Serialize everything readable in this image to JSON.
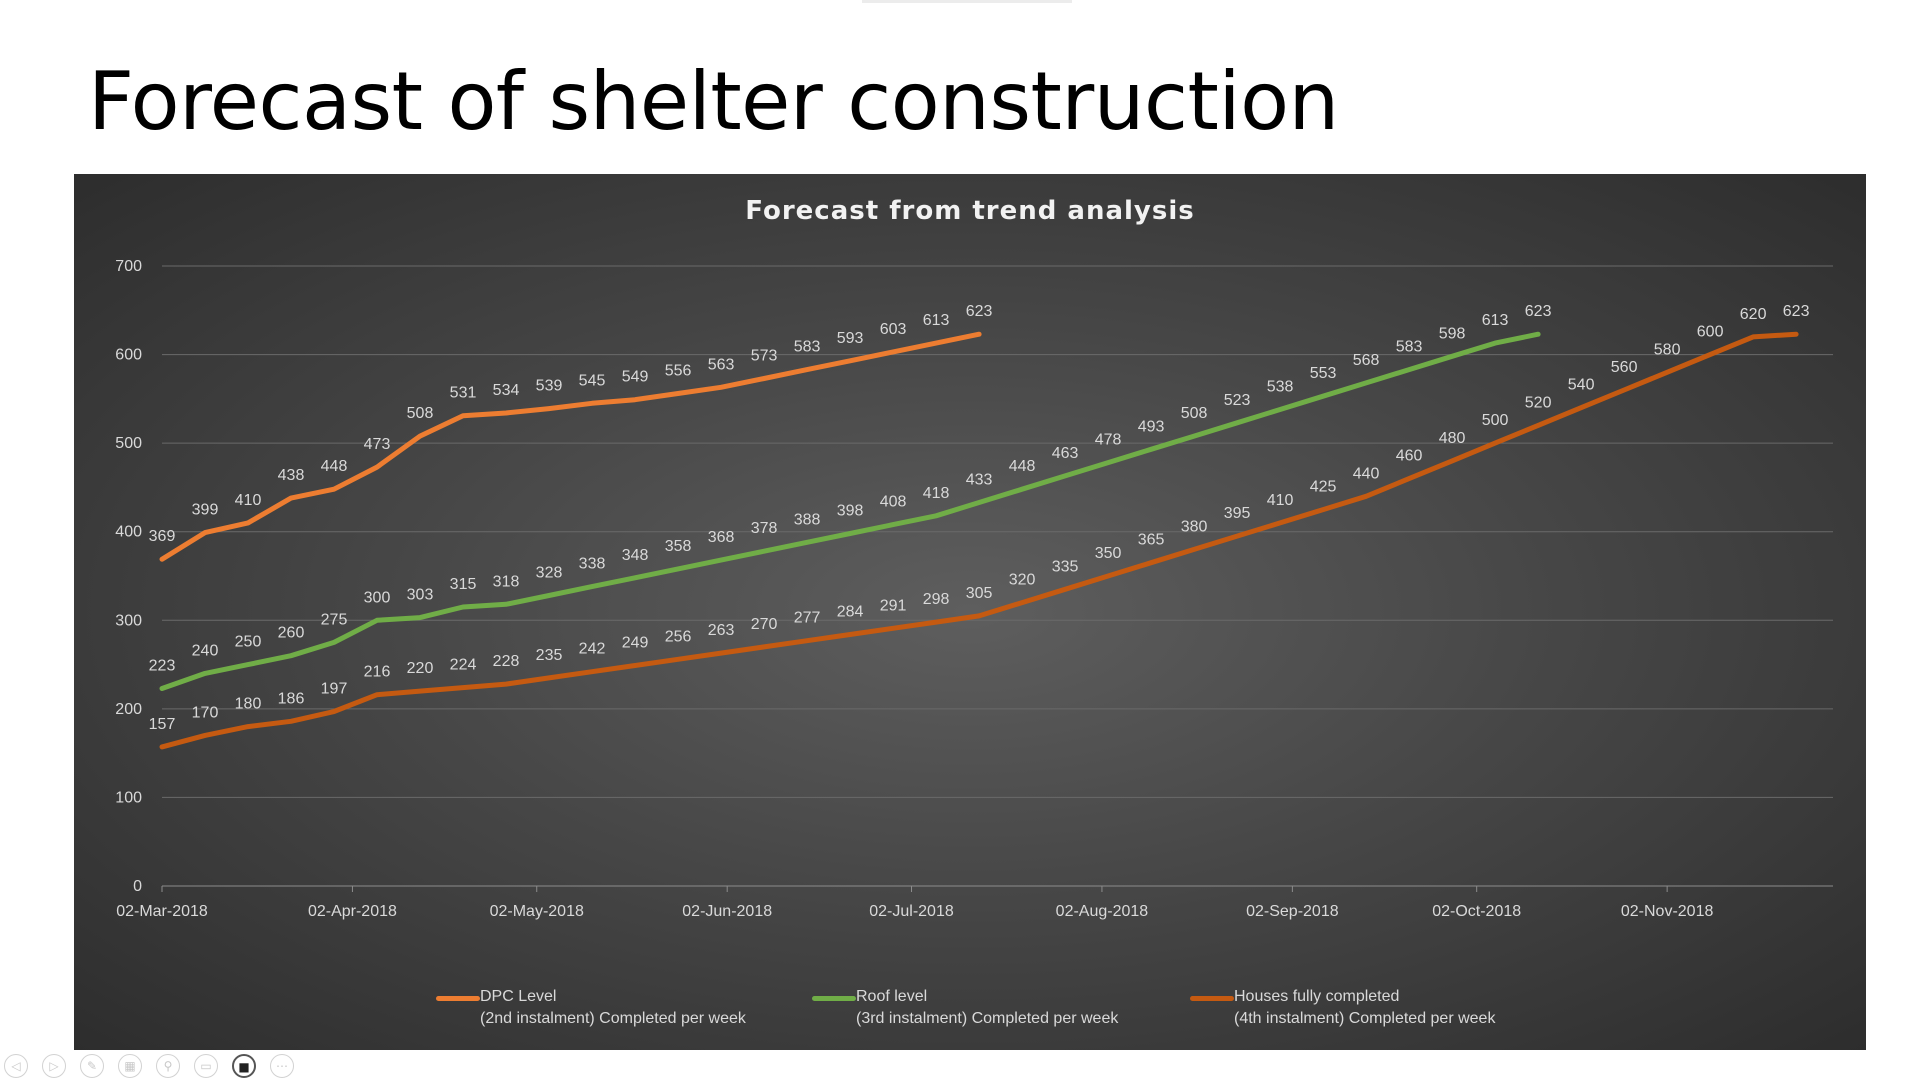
{
  "slide": {
    "title": "Forecast of shelter construction"
  },
  "chart_data": {
    "type": "line",
    "title": "Forecast from trend analysis",
    "ylim": [
      0,
      700
    ],
    "y_ticks": [
      0,
      100,
      200,
      300,
      400,
      500,
      600,
      700
    ],
    "x_range": [
      "2018-03-02",
      "2018-11-29"
    ],
    "x_tick_labels": [
      {
        "date": "2018-03-02",
        "label": "02-Mar-2018"
      },
      {
        "date": "2018-04-02",
        "label": "02-Apr-2018"
      },
      {
        "date": "2018-05-02",
        "label": "02-May-2018"
      },
      {
        "date": "2018-06-02",
        "label": "02-Jun-2018"
      },
      {
        "date": "2018-07-02",
        "label": "02-Jul-2018"
      },
      {
        "date": "2018-08-02",
        "label": "02-Aug-2018"
      },
      {
        "date": "2018-09-02",
        "label": "02-Sep-2018"
      },
      {
        "date": "2018-10-02",
        "label": "02-Oct-2018"
      },
      {
        "date": "2018-11-02",
        "label": "02-Nov-2018"
      }
    ],
    "grid": true,
    "legend_position": "bottom",
    "series": [
      {
        "name": "DPC Level (2nd instalment) Completed per week",
        "legend_lines": [
          "DPC Level",
          "(2nd instalment) Completed per week"
        ],
        "color": "#ed7d31",
        "start": "2018-03-02",
        "interval_days": 7,
        "values": [
          369,
          399,
          410,
          438,
          448,
          473,
          508,
          531,
          534,
          539,
          545,
          549,
          556,
          563,
          573,
          583,
          593,
          603,
          613,
          623
        ]
      },
      {
        "name": "Roof level (3rd instalment) Completed per week",
        "legend_lines": [
          "Roof level",
          "(3rd instalment)  Completed per week"
        ],
        "color": "#70ad47",
        "start": "2018-03-02",
        "interval_days": 7,
        "values": [
          223,
          240,
          250,
          260,
          275,
          300,
          303,
          315,
          318,
          328,
          338,
          348,
          358,
          368,
          378,
          388,
          398,
          408,
          418,
          433,
          448,
          463,
          478,
          493,
          508,
          523,
          538,
          553,
          568,
          583,
          598,
          613,
          623
        ]
      },
      {
        "name": "Houses fully completed (4th instalment) Completed per week",
        "legend_lines": [
          "Houses fully completed",
          "(4th instalment) Completed per week"
        ],
        "color": "#c55a11",
        "start": "2018-03-02",
        "interval_days": 7,
        "values": [
          157,
          170,
          180,
          186,
          197,
          216,
          220,
          224,
          228,
          235,
          242,
          249,
          256,
          263,
          270,
          277,
          284,
          291,
          298,
          305,
          320,
          335,
          350,
          365,
          380,
          395,
          410,
          425,
          440,
          460,
          480,
          500,
          520,
          540,
          560,
          580,
          600,
          620,
          623
        ]
      }
    ]
  },
  "toolbar": {
    "items": [
      {
        "name": "previous-slide-icon",
        "glyph": "◁"
      },
      {
        "name": "next-slide-icon",
        "glyph": "▷"
      },
      {
        "name": "pen-icon",
        "glyph": "✎"
      },
      {
        "name": "slides-grid-icon",
        "glyph": "▦"
      },
      {
        "name": "zoom-icon",
        "glyph": "⚲"
      },
      {
        "name": "subtitles-icon",
        "glyph": "▭"
      },
      {
        "name": "camera-icon",
        "glyph": "■"
      },
      {
        "name": "more-options-icon",
        "glyph": "⋯"
      }
    ]
  }
}
